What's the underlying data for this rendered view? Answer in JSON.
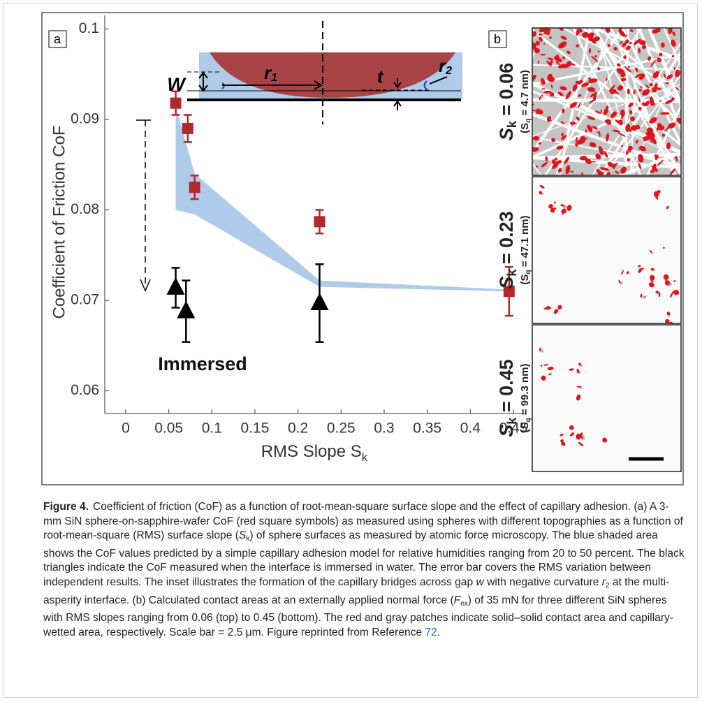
{
  "chart_data": {
    "type": "scatter",
    "panel_label": "a",
    "ylabel": "Coefficient of Friction CoF",
    "xlabel": "RMS Slope S",
    "xlabel_sub": "k",
    "xlim": [
      -0.0243,
      0.4638
    ],
    "ylim": [
      0.0575,
      0.1015
    ],
    "xticks": [
      0,
      0.05,
      0.1,
      0.15,
      0.2,
      0.25,
      0.3,
      0.35,
      0.4,
      0.45
    ],
    "yticks": [
      0.06,
      0.07,
      0.08,
      0.09,
      0.1
    ],
    "band": {
      "color": "#aecbea",
      "x": [
        0.058,
        0.08,
        0.225,
        0.445
      ],
      "upper": [
        0.0915,
        0.084,
        0.0722,
        0.0712
      ],
      "lower": [
        0.08,
        0.0795,
        0.0715,
        0.071
      ]
    },
    "series": [
      {
        "marker": "square",
        "color": "#b3282c",
        "x": [
          0.058,
          0.072,
          0.08,
          0.225,
          0.445
        ],
        "values": [
          0.0918,
          0.089,
          0.0825,
          0.0787,
          0.071
        ],
        "errors": [
          0.0013,
          0.0015,
          0.0013,
          0.0013,
          0.0027
        ]
      },
      {
        "marker": "triangle",
        "color": "#000000",
        "x": [
          0.058,
          0.07,
          0.225
        ],
        "values": [
          0.0714,
          0.0688,
          0.0697
        ],
        "errors": [
          0.0022,
          0.0034,
          0.0043
        ]
      }
    ],
    "annotation": "Immersed",
    "inset": {
      "w": "W",
      "r1": "r",
      "r1_sub": "1",
      "t": "t",
      "r2": "r",
      "r2_sub": "2"
    }
  },
  "panel_b": {
    "panel_label": "b",
    "images": [
      {
        "label": "S",
        "label_sub": "k",
        "label_rest": " = 0.06",
        "note": "(S",
        "note_sub": "q",
        "note_rest": " = 4.7 nm)"
      },
      {
        "label": "S",
        "label_sub": "k",
        "label_rest": " = 0.23",
        "note": "(S",
        "note_sub": "q",
        "note_rest": " = 47.1 nm)"
      },
      {
        "label": "S",
        "label_sub": "k",
        "label_rest": " = 0.45",
        "note": "(S",
        "note_sub": "q",
        "note_rest": " = 99.3 nm)"
      }
    ]
  },
  "caption": [
    {
      "text": "Figure 4.",
      "style": "bold"
    },
    {
      "text": "Coefficient of friction (CoF) as a function of root-mean-square surface slope and the effect of capillary adhesion. (a) A 3-mm SiN sphere-on-sapphire-wafer CoF (red square symbols) as measured using spheres with different topographies as a function of root-mean-square (RMS) surface slope (",
      "style": "plain"
    },
    {
      "text": "S",
      "style": "italic"
    },
    {
      "text": "k",
      "style": "sub"
    },
    {
      "text": ") of sphere surfaces as measured by atomic force microscopy. The blue shaded area shows the CoF values predicted by a simple capillary adhesion model for relative humidities ranging from 20 to 50 percent. The black triangles indicate the CoF measured when the interface is immersed in water. The error bar covers the RMS variation between independent results. The inset illustrates the formation of the capillary bridges across gap ",
      "style": "plain"
    },
    {
      "text": "w",
      "style": "italic"
    },
    {
      "text": " with negative curvature ",
      "style": "plain"
    },
    {
      "text": "r",
      "style": "italic"
    },
    {
      "text": "2",
      "style": "sub"
    },
    {
      "text": " at the multi-asperity interface. (b) Calculated contact areas at an externally applied normal force (",
      "style": "plain"
    },
    {
      "text": "F",
      "style": "italic"
    },
    {
      "text": "ex",
      "style": "sub"
    },
    {
      "text": ") of 35 mN for three different SiN spheres with RMS slopes ranging from 0.06 (top) to 0.45 (bottom). The red and gray patches indicate solid–solid contact area and capillary-wetted area, respectively. Scale bar = 2.5 μm. Figure reprinted from Reference ",
      "style": "plain"
    },
    {
      "text": "72",
      "style": "link"
    },
    {
      "text": ".",
      "style": "plain"
    }
  ]
}
